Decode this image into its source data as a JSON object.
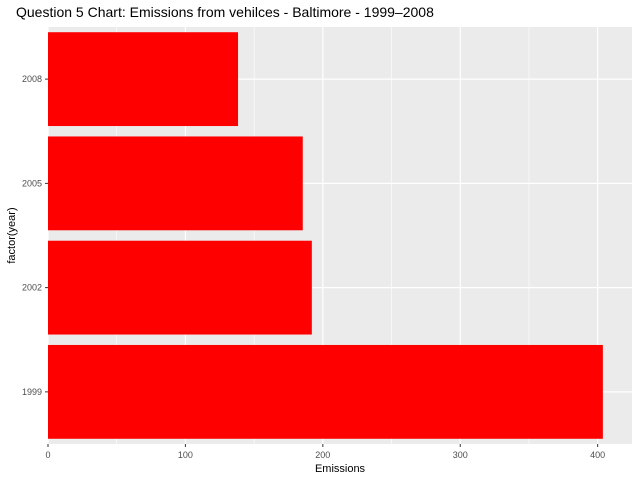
{
  "chart_data": {
    "type": "bar",
    "orientation": "horizontal",
    "title": "Question 5 Chart: Emissions from vehilces - Baltimore - 1999–2008",
    "xlabel": "Emissions",
    "ylabel": "factor(year)",
    "categories": [
      "1999",
      "2002",
      "2005",
      "2008"
    ],
    "values": [
      403.8,
      192.0,
      185.4,
      138.3
    ],
    "xlim": [
      0,
      425
    ],
    "x_ticks": [
      0,
      100,
      200,
      300,
      400
    ],
    "bar_color": "#FF0000",
    "panel_background": "#EBEBEB",
    "grid_color": "#FFFFFF",
    "grid": true
  }
}
